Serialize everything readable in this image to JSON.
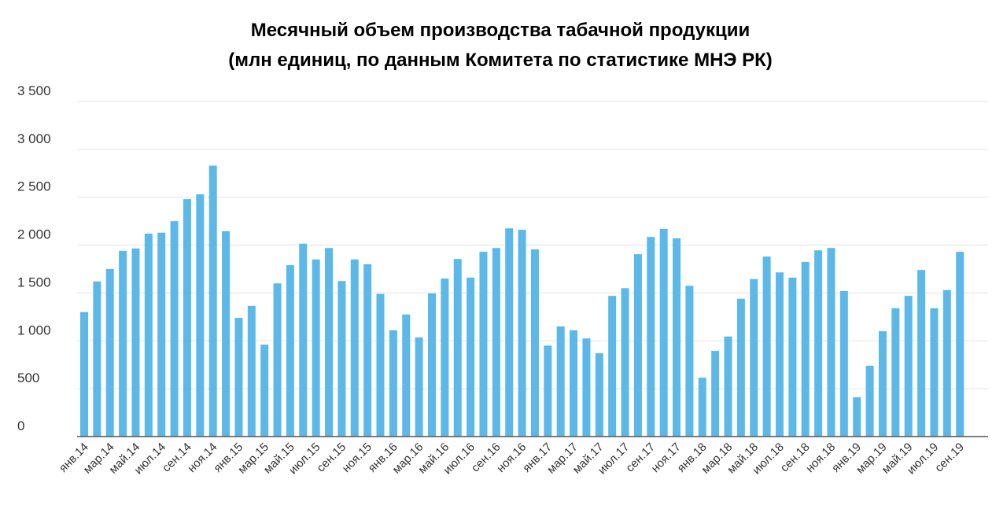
{
  "chart_data": {
    "type": "bar",
    "title": "Месячный объем производства табачной продукции",
    "subtitle": "(млн единиц, по данным Комитета по статистике МНЭ РК)",
    "categories": [
      "янв.14",
      null,
      "мар.14",
      null,
      "май.14",
      null,
      "июл.14",
      null,
      "сен.14",
      null,
      "ноя.14",
      null,
      "янв.15",
      null,
      "мар.15",
      null,
      "май.15",
      null,
      "июл.15",
      null,
      "сен.15",
      null,
      "ноя.15",
      null,
      "янв.16",
      null,
      "мар.16",
      null,
      "май.16",
      null,
      "июл.16",
      null,
      "сен.16",
      null,
      "ноя.16",
      null,
      "янв.17",
      null,
      "мар.17",
      null,
      "май.17",
      null,
      "июл.17",
      null,
      "сен.17",
      null,
      "ноя.17",
      null,
      "янв.18",
      null,
      "мар.18",
      null,
      "май.18",
      null,
      "июл.18",
      null,
      "сен.18",
      null,
      "ноя.18",
      null,
      "янв.19",
      null,
      "мар.19",
      null,
      "май.19",
      null,
      "июл.19",
      null,
      "сен.19"
    ],
    "values": [
      1300,
      1620,
      1750,
      1940,
      1965,
      2120,
      2130,
      2250,
      2480,
      2530,
      2830,
      2145,
      1240,
      1365,
      960,
      1600,
      1790,
      2015,
      1850,
      1970,
      1625,
      1850,
      1800,
      1490,
      1110,
      1275,
      1035,
      1495,
      1650,
      1855,
      1660,
      1930,
      1970,
      2175,
      2160,
      1955,
      950,
      1150,
      1110,
      1025,
      870,
      1470,
      1550,
      1905,
      2085,
      2170,
      2070,
      1575,
      615,
      895,
      1045,
      1440,
      1645,
      1880,
      1715,
      1660,
      1825,
      1945,
      1970,
      1520,
      410,
      740,
      1100,
      1340,
      1470,
      1740,
      1340,
      1530,
      1930
    ],
    "color": "#5cb8e8",
    "ylim": [
      0,
      3500
    ],
    "yticks": [
      0,
      500,
      {
        "value": 1000,
        "label": "1 000"
      },
      {
        "value": 1500,
        "label": "1 500"
      },
      {
        "value": 2000,
        "label": "2 000"
      },
      {
        "value": 2500,
        "label": "2 500"
      },
      {
        "value": 3000,
        "label": "3 000"
      },
      {
        "value": 3500,
        "label": "3 500"
      }
    ],
    "grid": true
  }
}
